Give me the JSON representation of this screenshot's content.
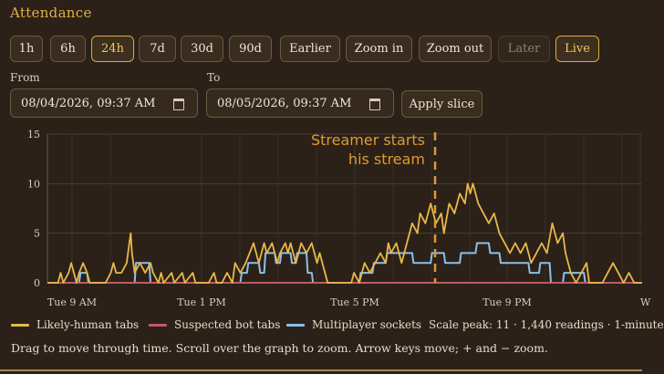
{
  "title": "Attendance",
  "range_buttons": [
    {
      "label": "1h",
      "state": "normal"
    },
    {
      "label": "6h",
      "state": "normal"
    },
    {
      "label": "24h",
      "state": "active"
    },
    {
      "label": "7d",
      "state": "normal"
    },
    {
      "label": "30d",
      "state": "normal"
    },
    {
      "label": "90d",
      "state": "normal"
    },
    {
      "label": "Earlier",
      "state": "normal"
    },
    {
      "label": "Zoom in",
      "state": "normal"
    },
    {
      "label": "Zoom out",
      "state": "normal"
    },
    {
      "label": "Later",
      "state": "disabled"
    },
    {
      "label": "Live",
      "state": "active"
    }
  ],
  "from": {
    "label": "From",
    "value": "08/04/2026, 09:37 AM"
  },
  "to": {
    "label": "To",
    "value": "08/05/2026, 09:37 AM"
  },
  "apply_label": "Apply slice",
  "legend": [
    {
      "label": "Likely-human tabs",
      "color": "#e8b84a"
    },
    {
      "label": "Suspected bot tabs",
      "color": "#c05a66"
    },
    {
      "label": "Multiplayer sockets",
      "color": "#8cc0e8"
    }
  ],
  "scale_note": "Scale peak: 11 · 1,440 readings · 1-minute",
  "footer": "Drag to move through time. Scroll over the graph to zoom. Arrow keys move; + and − zoom.",
  "chart_data": {
    "type": "line",
    "x_start": "08/04/2026, 09:37 AM",
    "x_end": "08/05/2026, 09:37 AM",
    "x_ticks": [
      "Tue 9 AM",
      "Tue 1 PM",
      "Tue 5 PM",
      "Tue 9 PM",
      "W"
    ],
    "ylim": [
      0,
      15
    ],
    "y_ticks": [
      "0",
      "5",
      "10",
      "15"
    ],
    "grid": true,
    "annotation": {
      "text_lines": [
        "Streamer starts",
        "his stream"
      ],
      "time": "Tue 7:16 PM",
      "color": "#e09a30"
    },
    "series": [
      {
        "name": "Likely-human tabs",
        "color": "#e8b84a",
        "points": [
          [
            0,
            0
          ],
          [
            0.4,
            0
          ],
          [
            0.5,
            1
          ],
          [
            0.6,
            0
          ],
          [
            0.8,
            1
          ],
          [
            0.9,
            2
          ],
          [
            1,
            1
          ],
          [
            1.1,
            0
          ],
          [
            1.2,
            1
          ],
          [
            1.35,
            2
          ],
          [
            1.5,
            1
          ],
          [
            1.6,
            0
          ],
          [
            2.2,
            0
          ],
          [
            2.4,
            1
          ],
          [
            2.5,
            2
          ],
          [
            2.6,
            1
          ],
          [
            2.8,
            1
          ],
          [
            3,
            2
          ],
          [
            3.1,
            4
          ],
          [
            3.15,
            5
          ],
          [
            3.2,
            3
          ],
          [
            3.3,
            1
          ],
          [
            3.5,
            2
          ],
          [
            3.7,
            1
          ],
          [
            3.9,
            2
          ],
          [
            4,
            1
          ],
          [
            4.2,
            0
          ],
          [
            4.3,
            1
          ],
          [
            4.4,
            0
          ],
          [
            4.7,
            1
          ],
          [
            4.8,
            0
          ],
          [
            5.1,
            1
          ],
          [
            5.2,
            0
          ],
          [
            5.5,
            1
          ],
          [
            5.6,
            0
          ],
          [
            6.1,
            0
          ],
          [
            6.3,
            1
          ],
          [
            6.4,
            0
          ],
          [
            6.6,
            0
          ],
          [
            6.8,
            1
          ],
          [
            7,
            0
          ],
          [
            7.1,
            2
          ],
          [
            7.3,
            1
          ],
          [
            7.5,
            2
          ],
          [
            7.65,
            3
          ],
          [
            7.8,
            4
          ],
          [
            7.9,
            3
          ],
          [
            8,
            2
          ],
          [
            8.2,
            4
          ],
          [
            8.3,
            3
          ],
          [
            8.5,
            4
          ],
          [
            8.6,
            3
          ],
          [
            8.7,
            2
          ],
          [
            8.8,
            3
          ],
          [
            9,
            4
          ],
          [
            9.1,
            3
          ],
          [
            9.2,
            4
          ],
          [
            9.4,
            2
          ],
          [
            9.6,
            4
          ],
          [
            9.8,
            3
          ],
          [
            10,
            4
          ],
          [
            10.2,
            2
          ],
          [
            10.3,
            3
          ],
          [
            10.5,
            1
          ],
          [
            10.6,
            0
          ],
          [
            11.5,
            0
          ],
          [
            11.6,
            1
          ],
          [
            11.8,
            0
          ],
          [
            11.9,
            1
          ],
          [
            12,
            2
          ],
          [
            12.2,
            1
          ],
          [
            12.4,
            2
          ],
          [
            12.6,
            3
          ],
          [
            12.8,
            2
          ],
          [
            12.9,
            4
          ],
          [
            13,
            3
          ],
          [
            13.2,
            4
          ],
          [
            13.4,
            2
          ],
          [
            13.6,
            4
          ],
          [
            13.8,
            6
          ],
          [
            14,
            5
          ],
          [
            14.1,
            7
          ],
          [
            14.3,
            6
          ],
          [
            14.5,
            8
          ],
          [
            14.7,
            6
          ],
          [
            14.9,
            7
          ],
          [
            15,
            5
          ],
          [
            15.2,
            8
          ],
          [
            15.4,
            7
          ],
          [
            15.6,
            9
          ],
          [
            15.8,
            8
          ],
          [
            15.9,
            10
          ],
          [
            16,
            9
          ],
          [
            16.1,
            10
          ],
          [
            16.3,
            8
          ],
          [
            16.5,
            7
          ],
          [
            16.7,
            6
          ],
          [
            16.9,
            7
          ],
          [
            17.1,
            5
          ],
          [
            17.3,
            4
          ],
          [
            17.5,
            3
          ],
          [
            17.7,
            4
          ],
          [
            17.9,
            3
          ],
          [
            18.1,
            4
          ],
          [
            18.3,
            2
          ],
          [
            18.5,
            3
          ],
          [
            18.7,
            4
          ],
          [
            18.9,
            3
          ],
          [
            19.1,
            6
          ],
          [
            19.3,
            4
          ],
          [
            19.5,
            5
          ],
          [
            19.6,
            3
          ],
          [
            19.7,
            2
          ],
          [
            19.8,
            1
          ],
          [
            20,
            0
          ],
          [
            20.2,
            1
          ],
          [
            20.4,
            2
          ],
          [
            20.5,
            0
          ],
          [
            21,
            0
          ],
          [
            21.2,
            1
          ],
          [
            21.4,
            2
          ],
          [
            21.6,
            1
          ],
          [
            21.8,
            0
          ],
          [
            22,
            1
          ],
          [
            22.2,
            0
          ],
          [
            22.5,
            0
          ]
        ]
      },
      {
        "name": "Suspected bot tabs",
        "color": "#c05a66",
        "points": [
          [
            0,
            0
          ],
          [
            22.5,
            0
          ]
        ]
      },
      {
        "name": "Multiplayer sockets",
        "color": "#8cc0e8",
        "points": [
          [
            0,
            0
          ],
          [
            1.2,
            0
          ],
          [
            1.25,
            1
          ],
          [
            1.5,
            1
          ],
          [
            1.55,
            0
          ],
          [
            3.3,
            0
          ],
          [
            3.35,
            2
          ],
          [
            3.85,
            2
          ],
          [
            3.9,
            0
          ],
          [
            7.3,
            0
          ],
          [
            7.35,
            1
          ],
          [
            7.55,
            1
          ],
          [
            7.6,
            2
          ],
          [
            8.0,
            2
          ],
          [
            8.05,
            1
          ],
          [
            8.2,
            1
          ],
          [
            8.25,
            3
          ],
          [
            8.6,
            3
          ],
          [
            8.65,
            2
          ],
          [
            8.8,
            2
          ],
          [
            8.85,
            3
          ],
          [
            9.2,
            3
          ],
          [
            9.25,
            2
          ],
          [
            9.4,
            2
          ],
          [
            9.45,
            3
          ],
          [
            9.8,
            3
          ],
          [
            9.85,
            1
          ],
          [
            10,
            1
          ],
          [
            10.05,
            0
          ],
          [
            11.8,
            0
          ],
          [
            11.85,
            1
          ],
          [
            12.3,
            1
          ],
          [
            12.35,
            2
          ],
          [
            12.8,
            2
          ],
          [
            12.85,
            3
          ],
          [
            13.8,
            3
          ],
          [
            13.85,
            2
          ],
          [
            14.5,
            2
          ],
          [
            14.55,
            3
          ],
          [
            15.0,
            3
          ],
          [
            15.05,
            2
          ],
          [
            15.6,
            2
          ],
          [
            15.65,
            3
          ],
          [
            16.2,
            3
          ],
          [
            16.25,
            4
          ],
          [
            16.7,
            4
          ],
          [
            16.75,
            3
          ],
          [
            17.1,
            3
          ],
          [
            17.15,
            2
          ],
          [
            18.2,
            2
          ],
          [
            18.25,
            1
          ],
          [
            18.6,
            1
          ],
          [
            18.65,
            2
          ],
          [
            19.0,
            2
          ],
          [
            19.05,
            0
          ],
          [
            19.5,
            0
          ],
          [
            19.55,
            1
          ],
          [
            20.3,
            1
          ],
          [
            20.35,
            0
          ],
          [
            22.5,
            0
          ]
        ]
      }
    ]
  }
}
